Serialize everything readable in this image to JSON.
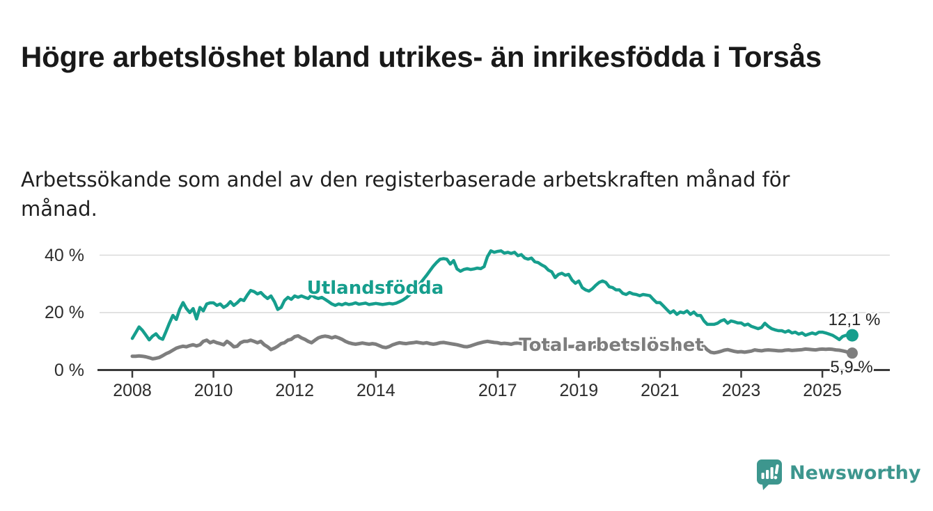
{
  "header": {
    "title": "Högre arbetslöshet bland utrikes- än inrikesfödda i Torsås",
    "subtitle": "Arbetssökande som andel av den registerbaserade arbetskraften månad för månad."
  },
  "branding": {
    "logo_text": "Newsworthy",
    "logo_icon": "newsworthy-speech-bubble-bar-chart-icon",
    "logo_color": "#3D968E"
  },
  "chart_data": {
    "type": "line",
    "title": "Högre arbetslöshet bland utrikes- än inrikesfödda i Torsås",
    "subtitle": "Arbetssökande som andel av den registerbaserade arbetskraften månad för månad.",
    "x_unit": "month",
    "x_start": "2008-01",
    "x_end": "2025-09",
    "frequency": "monthly",
    "grid": "horizontal",
    "legend_position": "inline-labels",
    "ylim": [
      0,
      44
    ],
    "xlim_years": [
      2007.9,
      2026.0
    ],
    "y_ticks": [
      {
        "value": 0,
        "label": "0 %"
      },
      {
        "value": 20,
        "label": "20 %"
      },
      {
        "value": 40,
        "label": "40 %"
      }
    ],
    "x_ticks": [
      {
        "year": 2008,
        "label": "2008"
      },
      {
        "year": 2010,
        "label": "2010"
      },
      {
        "year": 2012,
        "label": "2012"
      },
      {
        "year": 2014,
        "label": "2014"
      },
      {
        "year": 2017,
        "label": "2017"
      },
      {
        "year": 2019,
        "label": "2019"
      },
      {
        "year": 2021,
        "label": "2021"
      },
      {
        "year": 2023,
        "label": "2023"
      },
      {
        "year": 2025,
        "label": "2025"
      }
    ],
    "series": [
      {
        "name": "Utlandsfödda",
        "color": "#169E8D",
        "line_width": 4.5,
        "end_dot_radius": 9,
        "final_value": 12.1,
        "end_label": "12,1 %",
        "values": [
          11.0,
          13.0,
          15.0,
          13.8,
          12.2,
          10.5,
          11.8,
          12.6,
          11.2,
          10.7,
          13.5,
          16.4,
          19.0,
          17.6,
          21.1,
          23.5,
          21.4,
          20.0,
          21.4,
          17.8,
          21.8,
          20.6,
          23.0,
          23.4,
          23.4,
          22.5,
          23.0,
          21.8,
          22.5,
          23.8,
          22.5,
          23.4,
          24.6,
          24.2,
          26.1,
          27.7,
          27.3,
          26.5,
          27.0,
          25.8,
          24.9,
          25.8,
          23.8,
          21.1,
          21.8,
          24.2,
          25.3,
          24.6,
          25.8,
          25.3,
          25.8,
          25.3,
          24.9,
          26.1,
          25.3,
          24.9,
          25.3,
          24.6,
          23.8,
          23.0,
          22.5,
          23.0,
          22.7,
          23.2,
          22.8,
          23.0,
          23.4,
          22.9,
          23.1,
          23.3,
          22.8,
          23.0,
          23.2,
          23.0,
          22.8,
          23.0,
          23.2,
          23.0,
          23.3,
          23.8,
          24.4,
          25.2,
          26.2,
          27.3,
          28.6,
          30.0,
          31.5,
          33.0,
          34.6,
          36.2,
          37.5,
          38.6,
          38.8,
          38.6,
          36.9,
          38.1,
          35.2,
          34.4,
          35.0,
          35.3,
          35.0,
          35.2,
          35.5,
          35.3,
          36.0,
          39.5,
          41.5,
          41.0,
          41.3,
          41.5,
          40.7,
          41.0,
          40.6,
          41.0,
          39.8,
          40.2,
          39.0,
          38.6,
          39.0,
          37.7,
          37.4,
          36.6,
          36.0,
          34.8,
          34.2,
          32.2,
          33.3,
          33.7,
          33.0,
          33.3,
          31.3,
          30.2,
          31.0,
          28.7,
          27.9,
          27.5,
          28.3,
          29.5,
          30.5,
          31.0,
          30.5,
          29.0,
          28.7,
          27.9,
          27.9,
          26.7,
          26.3,
          27.0,
          26.5,
          26.3,
          25.9,
          26.3,
          26.1,
          25.9,
          24.6,
          23.5,
          23.5,
          22.3,
          21.1,
          19.9,
          20.6,
          19.4,
          20.2,
          19.9,
          20.6,
          19.4,
          20.2,
          19.0,
          19.0,
          17.1,
          15.9,
          15.9,
          15.9,
          16.3,
          17.1,
          17.5,
          16.3,
          17.1,
          16.8,
          16.4,
          16.4,
          15.6,
          16.0,
          15.2,
          14.8,
          14.4,
          14.8,
          16.3,
          15.2,
          14.4,
          14.0,
          13.7,
          13.7,
          13.2,
          13.7,
          12.9,
          13.2,
          12.5,
          12.9,
          12.1,
          12.5,
          12.9,
          12.5,
          13.2,
          13.2,
          12.9,
          12.5,
          12.1,
          11.4,
          10.6,
          11.7,
          12.1,
          12.1
        ]
      },
      {
        "name": "Total arbetslöshet",
        "color": "#7E7E7E",
        "line_width": 5,
        "end_dot_radius": 8,
        "final_value": 5.9,
        "end_label": "5,9 %",
        "values": [
          4.8,
          4.8,
          4.9,
          4.8,
          4.6,
          4.3,
          3.9,
          4.1,
          4.4,
          5.0,
          5.7,
          6.2,
          6.9,
          7.6,
          8.0,
          8.3,
          8.1,
          8.5,
          8.8,
          8.4,
          8.8,
          10.0,
          10.4,
          9.5,
          10.0,
          9.5,
          9.2,
          8.8,
          10.0,
          9.2,
          8.1,
          8.3,
          9.5,
          10.0,
          10.0,
          10.4,
          10.0,
          9.5,
          10.0,
          8.8,
          8.1,
          7.1,
          7.6,
          8.3,
          9.2,
          9.5,
          10.4,
          10.7,
          11.6,
          11.9,
          11.2,
          10.7,
          10.0,
          9.5,
          10.4,
          11.2,
          11.6,
          11.8,
          11.6,
          11.2,
          11.6,
          11.2,
          10.7,
          10.0,
          9.5,
          9.2,
          9.0,
          9.2,
          9.4,
          9.2,
          9.0,
          9.2,
          9.0,
          8.5,
          8.0,
          7.8,
          8.2,
          8.8,
          9.2,
          9.5,
          9.3,
          9.2,
          9.4,
          9.5,
          9.7,
          9.5,
          9.3,
          9.5,
          9.2,
          9.0,
          9.2,
          9.5,
          9.6,
          9.4,
          9.2,
          9.0,
          8.8,
          8.5,
          8.2,
          8.1,
          8.4,
          8.8,
          9.2,
          9.5,
          9.8,
          10.0,
          9.8,
          9.6,
          9.5,
          9.2,
          9.3,
          9.2,
          9.0,
          9.3,
          9.4,
          9.2,
          9.0,
          8.9,
          8.8,
          8.8,
          8.7,
          8.6,
          8.5,
          8.4,
          8.3,
          8.4,
          8.5,
          8.4,
          8.3,
          8.2,
          8.2,
          8.3,
          8.3,
          8.2,
          8.1,
          8.0,
          8.0,
          8.1,
          8.2,
          8.1,
          8.0,
          8.0,
          8.1,
          8.2,
          8.3,
          8.5,
          8.8,
          9.2,
          9.4,
          9.3,
          9.2,
          9.0,
          8.9,
          8.7,
          8.5,
          8.4,
          8.3,
          8.2,
          8.0,
          7.8,
          7.6,
          7.5,
          7.4,
          7.3,
          7.4,
          7.5,
          7.8,
          8.2,
          8.8,
          8.2,
          7.0,
          6.2,
          6.0,
          6.2,
          6.5,
          6.9,
          7.1,
          6.8,
          6.5,
          6.3,
          6.4,
          6.2,
          6.4,
          6.6,
          7.0,
          6.8,
          6.7,
          6.9,
          7.0,
          6.9,
          6.8,
          6.7,
          6.7,
          6.9,
          7.0,
          6.8,
          6.9,
          7.0,
          7.1,
          7.3,
          7.2,
          7.1,
          7.0,
          7.2,
          7.3,
          7.2,
          7.3,
          7.2,
          7.0,
          6.9,
          6.7,
          6.4,
          5.9
        ]
      }
    ],
    "style": {
      "axis_color": "#3A3A3A",
      "grid_color": "#D9D9D9",
      "tick_label_color": "#2D2D2D",
      "end_label_color": "#222222"
    }
  }
}
